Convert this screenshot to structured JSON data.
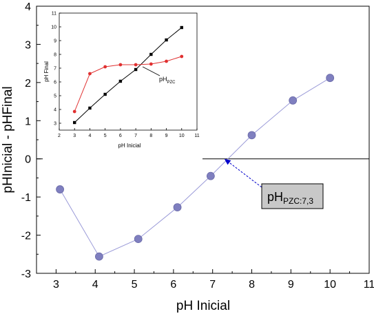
{
  "chart_data": [
    {
      "type": "line",
      "xlabel": "pH Inicial",
      "ylabel": "pHInicial - pHFinal",
      "xlim": [
        2.5,
        11
      ],
      "ylim": [
        -3,
        4
      ],
      "xticks": [
        "3",
        "4",
        "5",
        "6",
        "7",
        "8",
        "9",
        "10",
        "11"
      ],
      "yticks": [
        "-3",
        "-2",
        "-1",
        "0",
        "1",
        "2",
        "3",
        "4"
      ],
      "grid": false,
      "reference_line_y": 0,
      "series": [
        {
          "color": "#7F7FBF",
          "line_color": "#9A9AD8",
          "marker": "circle",
          "points": [
            [
              3.1,
              -0.8
            ],
            [
              4.1,
              -2.56
            ],
            [
              5.1,
              -2.1
            ],
            [
              6.1,
              -1.27
            ],
            [
              6.95,
              -0.45
            ],
            [
              8.0,
              0.62
            ],
            [
              9.05,
              1.53
            ],
            [
              10.0,
              2.12
            ]
          ]
        }
      ],
      "annotation": {
        "label_main": "pH",
        "label_sub": "PZC:7,3",
        "arrow_to_x": 7.3,
        "arrow_to_y": 0,
        "box_fill": "#C8C8C8",
        "arrow_color": "#0000CC"
      }
    },
    {
      "type": "line",
      "inset": true,
      "xlabel": "pH Inicial",
      "ylabel": "pH Final",
      "xlim": [
        2,
        11
      ],
      "ylim": [
        2.5,
        11
      ],
      "xticks": [
        "2",
        "3",
        "4",
        "5",
        "6",
        "7",
        "8",
        "9",
        "10",
        "11"
      ],
      "yticks": [
        "3",
        "4",
        "5",
        "6",
        "7",
        "8",
        "9",
        "10",
        "11"
      ],
      "grid": false,
      "series": [
        {
          "color": "#000000",
          "marker": "square",
          "points": [
            [
              3,
              3.05
            ],
            [
              4,
              4.1
            ],
            [
              5,
              5.1
            ],
            [
              6,
              6.05
            ],
            [
              7,
              6.9
            ],
            [
              8,
              8.0
            ],
            [
              9,
              9.05
            ],
            [
              10,
              9.95
            ]
          ]
        },
        {
          "color": "#E03030",
          "marker": "circle",
          "points": [
            [
              3,
              3.85
            ],
            [
              4,
              6.6
            ],
            [
              5,
              7.1
            ],
            [
              6,
              7.25
            ],
            [
              7,
              7.25
            ],
            [
              8,
              7.3
            ],
            [
              9,
              7.5
            ],
            [
              10,
              7.85
            ]
          ]
        }
      ],
      "annotation": {
        "label_main": "pH",
        "label_sub": "PZC"
      }
    }
  ]
}
